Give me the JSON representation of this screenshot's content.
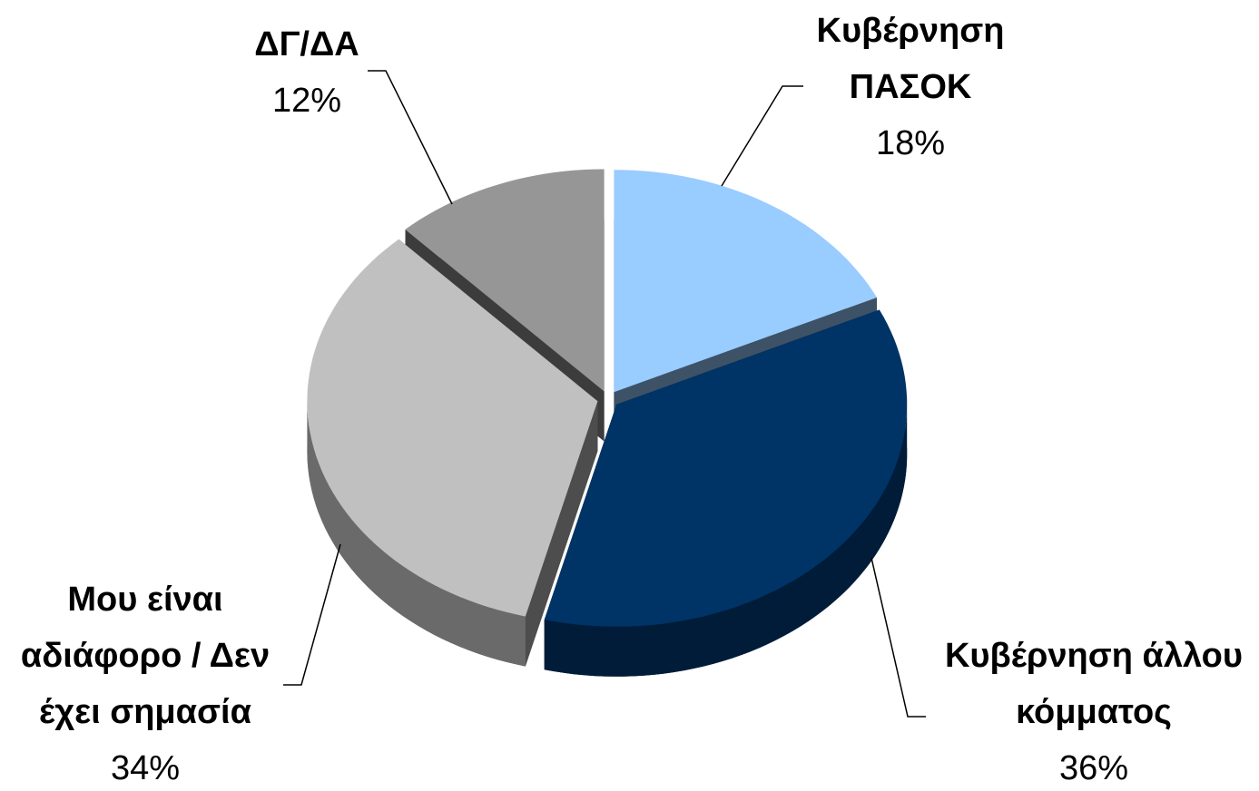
{
  "chart_data": {
    "type": "pie",
    "categories": [
      "Κυβέρνηση ΠΑΣΟΚ",
      "Κυβέρνηση άλλου κόμματος",
      "Μου είναι αδιάφορο / Δεν έχει σημασία",
      "ΔΓ/ΔΑ"
    ],
    "values": [
      18,
      36,
      34,
      12
    ],
    "value_labels": [
      "18%",
      "36%",
      "34%",
      "12%"
    ],
    "colors": [
      "#99ccff",
      "#003366",
      "#c0c0c0",
      "#969696"
    ]
  }
}
